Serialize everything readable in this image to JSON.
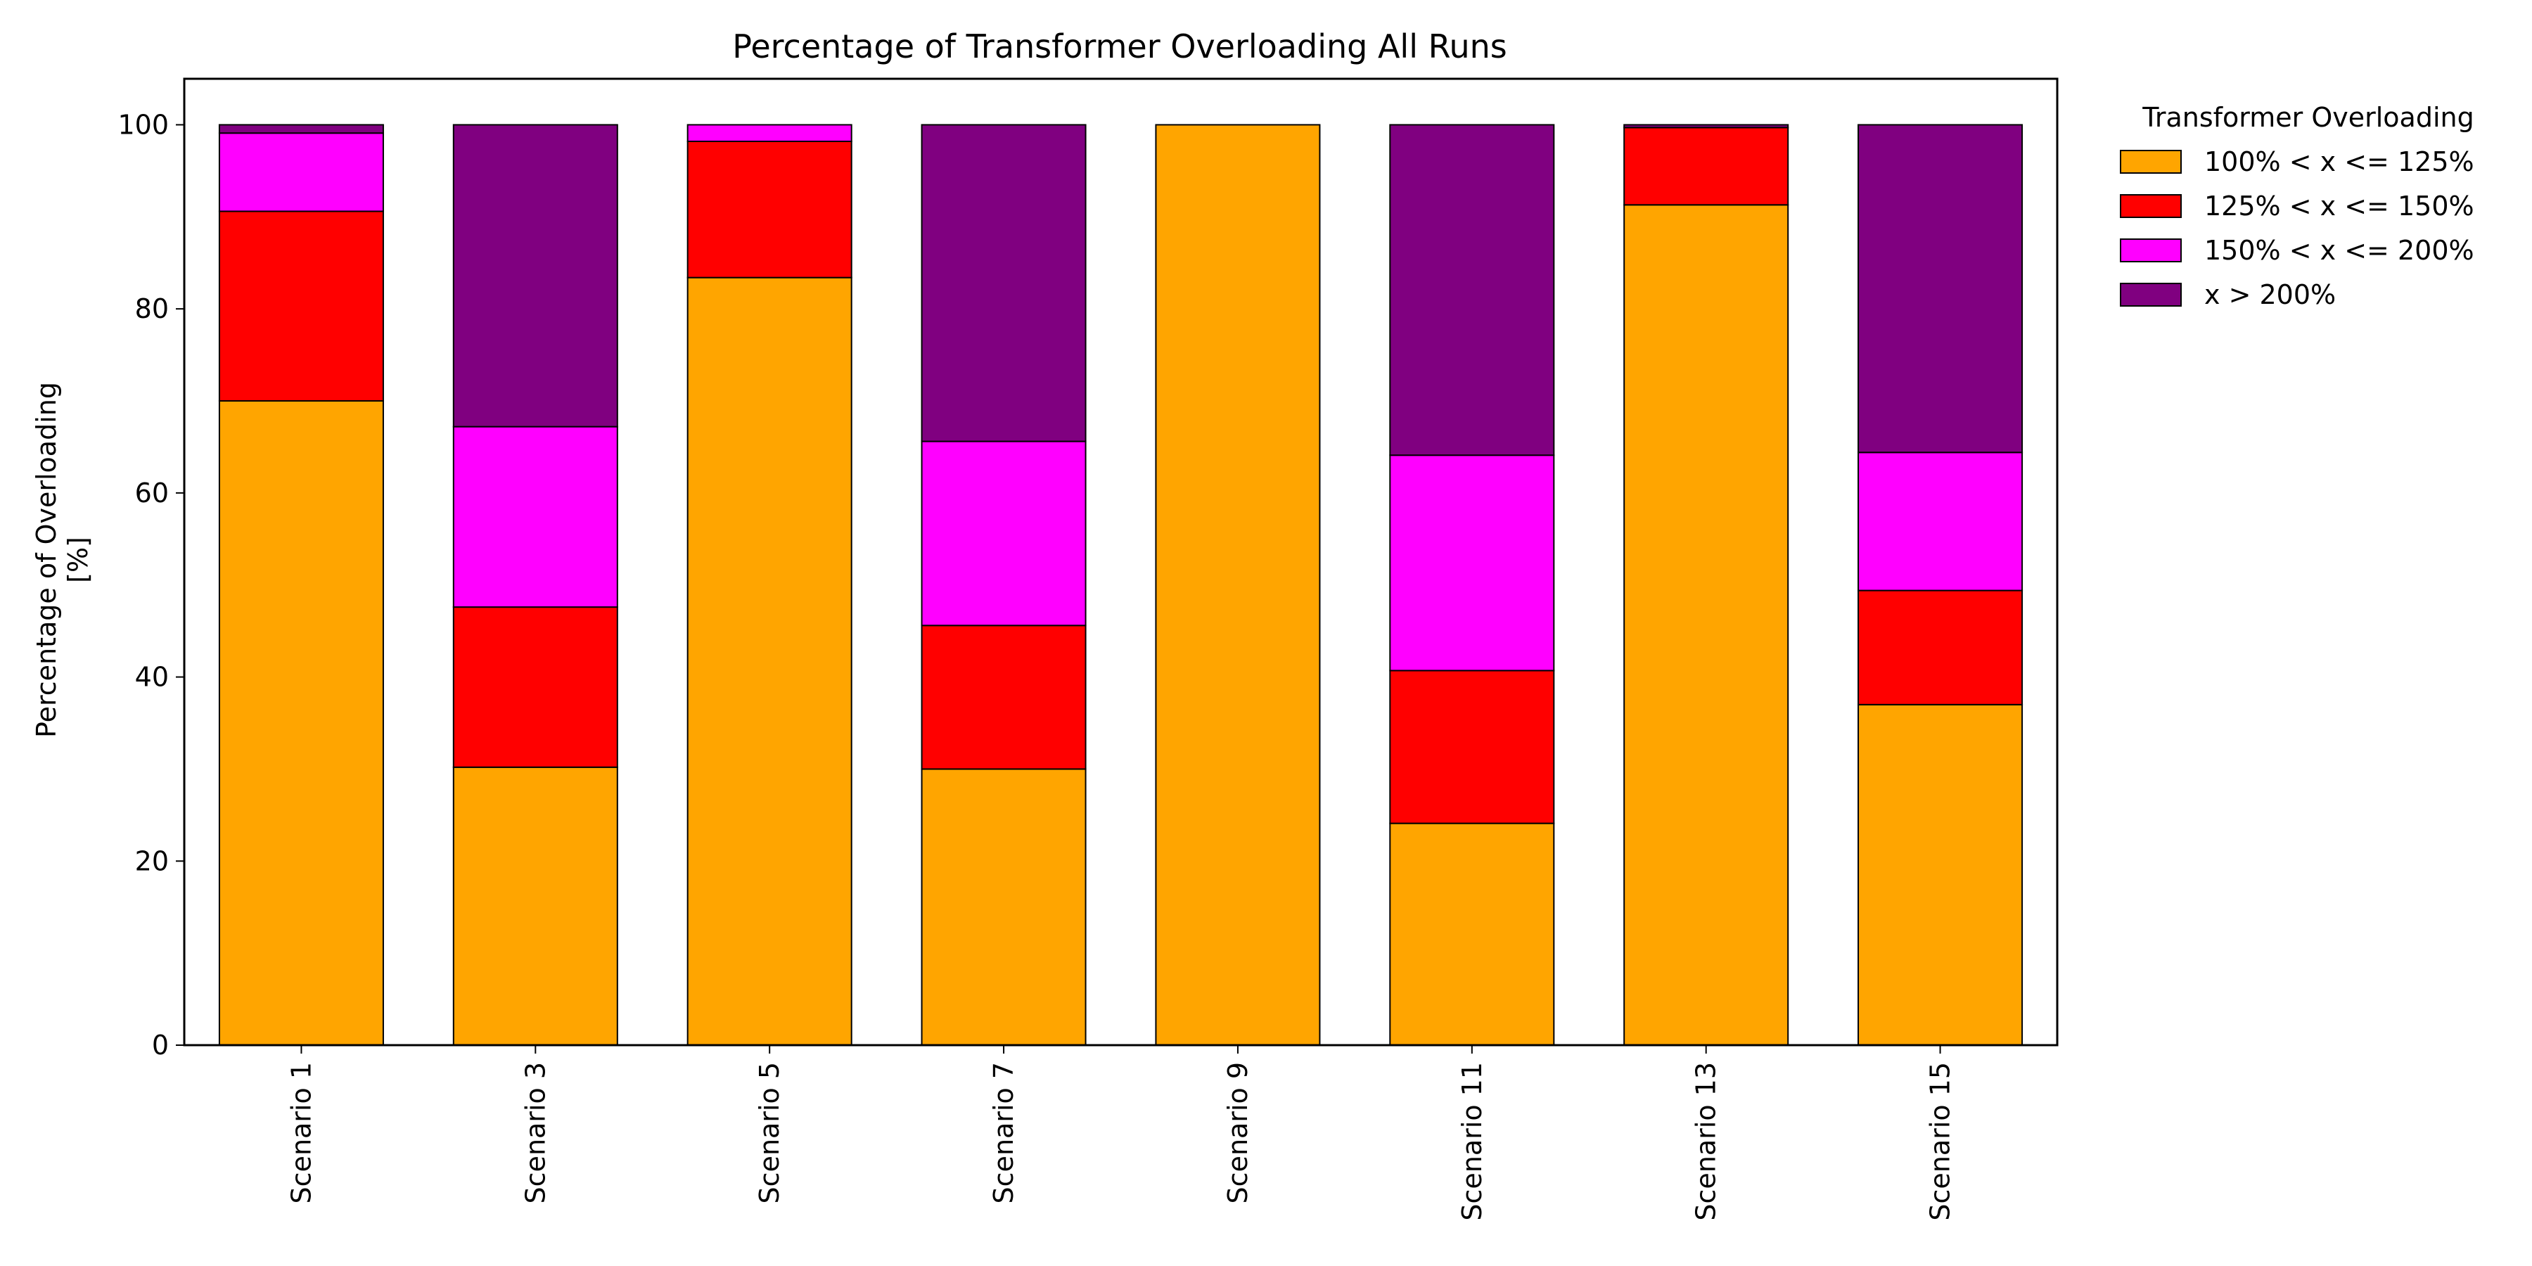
{
  "chart_data": {
    "type": "bar",
    "stacked": true,
    "title": "Percentage of Transformer Overloading All Runs",
    "xlabel": "",
    "ylabel_lines": [
      "Percentage of Overloading",
      "[%]"
    ],
    "ylim": [
      0,
      105
    ],
    "yticks": [
      0,
      20,
      40,
      60,
      80,
      100
    ],
    "grid": false,
    "legend": {
      "title": "Transformer Overloading",
      "placement": "outside-right-top"
    },
    "categories": [
      "Scenario 1",
      "Scenario 3",
      "Scenario 5",
      "Scenario 7",
      "Scenario 9",
      "Scenario 11",
      "Scenario 13",
      "Scenario 15"
    ],
    "series": [
      {
        "name": "100% < x <= 125%",
        "color": "#ffa500",
        "values": [
          70.0,
          30.2,
          83.4,
          30.0,
          100.0,
          24.1,
          91.3,
          37.0
        ]
      },
      {
        "name": "125% < x <= 150%",
        "color": "#ff0000",
        "values": [
          20.6,
          17.4,
          14.8,
          15.6,
          0.0,
          16.6,
          8.4,
          12.4
        ]
      },
      {
        "name": "150% < x <= 200%",
        "color": "#ff00ff",
        "values": [
          8.5,
          19.6,
          1.8,
          20.0,
          0.0,
          23.4,
          0.0,
          15.0
        ]
      },
      {
        "name": "x > 200%",
        "color": "#800080",
        "values": [
          0.9,
          32.8,
          0.0,
          34.4,
          0.0,
          35.9,
          0.3,
          35.6
        ]
      }
    ]
  }
}
